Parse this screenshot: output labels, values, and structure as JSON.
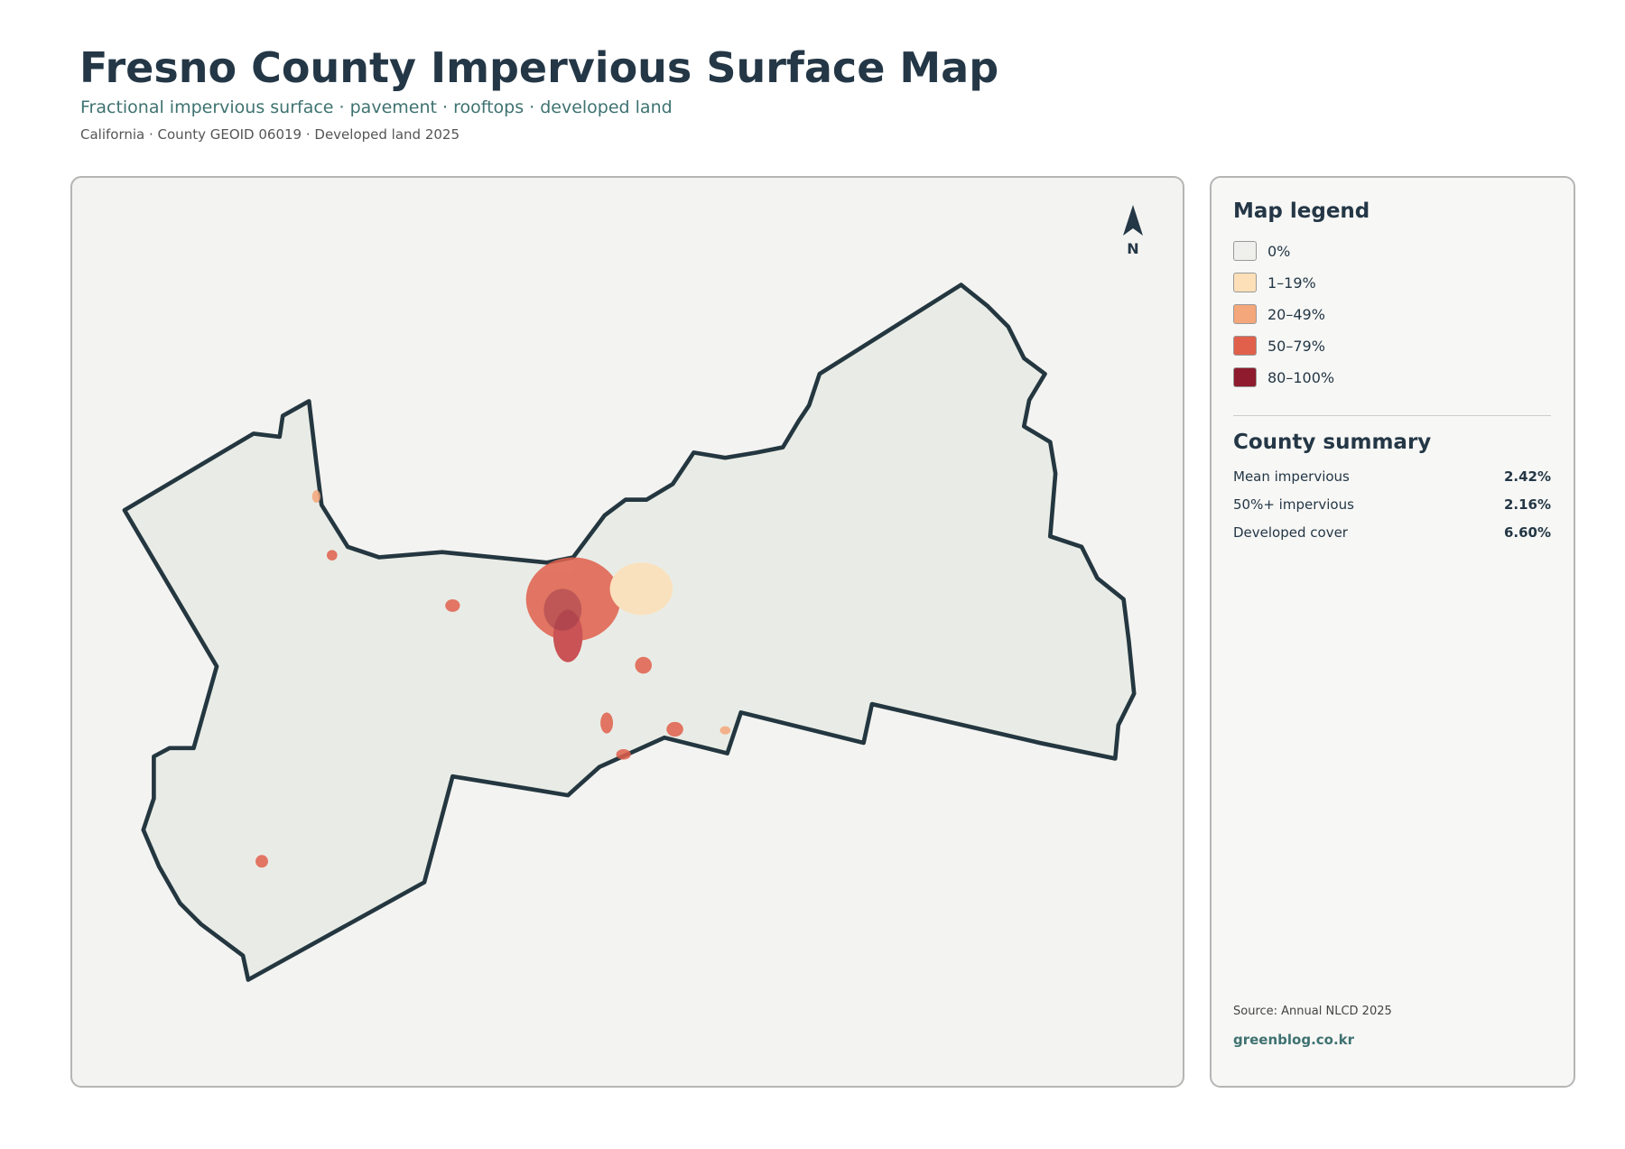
{
  "header": {
    "title": "Fresno County Impervious Surface Map",
    "subtitle": "Fractional impervious surface · pavement · rooftops · developed land",
    "meta": "California · County GEOID 06019 · Developed land 2025"
  },
  "map": {
    "north": "N"
  },
  "legend": {
    "title": "Map legend",
    "items": [
      {
        "label": "0%",
        "color": "#efefec"
      },
      {
        "label": "1–19%",
        "color": "#fde0b8"
      },
      {
        "label": "20–49%",
        "color": "#f4a77a"
      },
      {
        "label": "50–79%",
        "color": "#e0604c"
      },
      {
        "label": "80–100%",
        "color": "#8e1b2e"
      }
    ]
  },
  "summary": {
    "title": "County summary",
    "rows": [
      {
        "label": "Mean impervious",
        "value": "2.42%"
      },
      {
        "label": "50%+ impervious",
        "value": "2.16%"
      },
      {
        "label": "Developed cover",
        "value": "6.60%"
      }
    ]
  },
  "footer": {
    "source": "Source: Annual NLCD 2025",
    "site": "greenblog.co.kr"
  }
}
